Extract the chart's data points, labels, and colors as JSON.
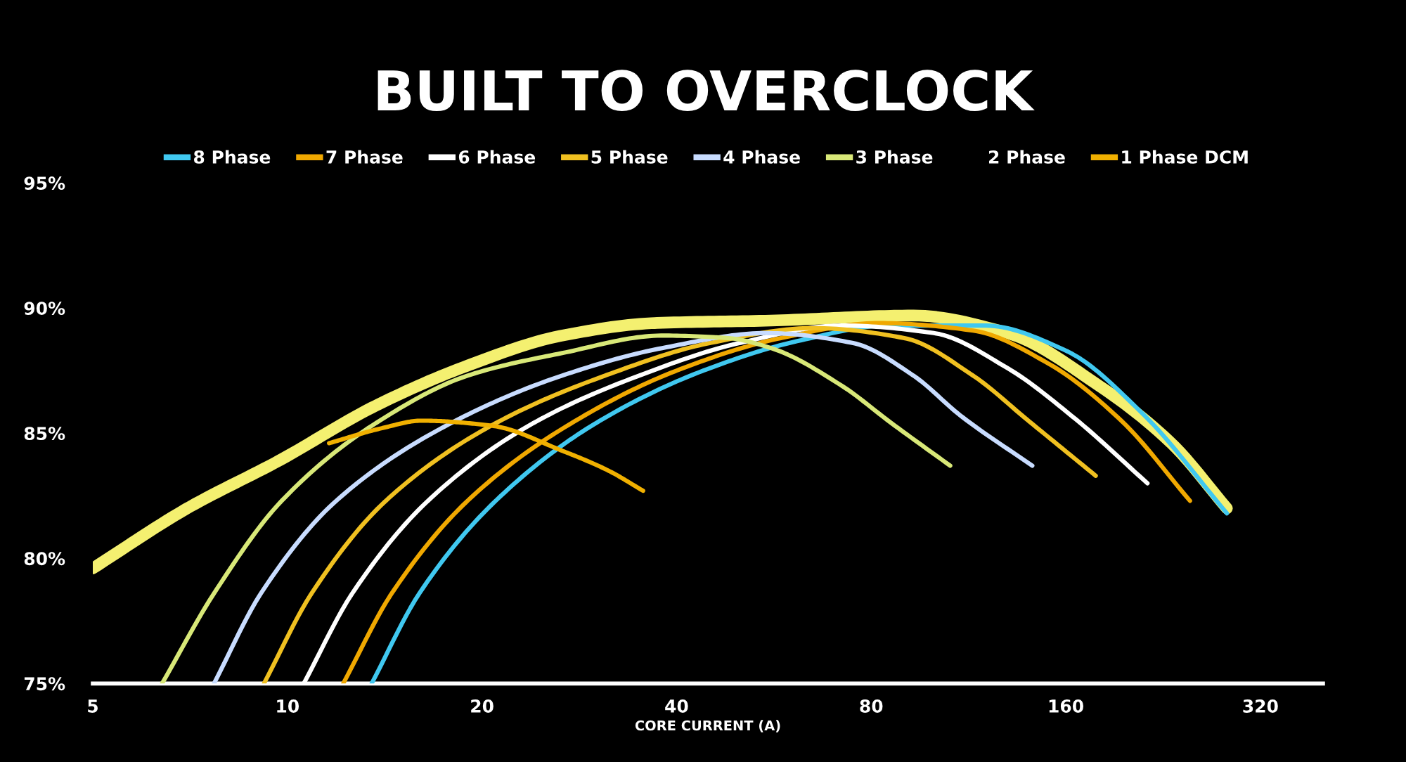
{
  "chart_data": {
    "type": "line",
    "title": "BUILT TO OVERCLOCK",
    "xlabel": "CORE CURRENT (A)",
    "log": "x",
    "xlim": [
      5,
      400
    ],
    "xticks": [
      5,
      10,
      20,
      40,
      80,
      160,
      320
    ],
    "ylim": [
      75,
      95
    ],
    "yticks": [
      {
        "value": 75,
        "label": "75%"
      },
      {
        "value": 80,
        "label": "80%"
      },
      {
        "value": 85,
        "label": "85%"
      },
      {
        "value": 90,
        "label": "90%"
      },
      {
        "value": 95,
        "label": "95%"
      }
    ],
    "grid": false,
    "legend": "top",
    "marker": "none",
    "line_style": "solid",
    "series": [
      {
        "name": "8 Phase",
        "color": "#40c8f0",
        "x": [
          13.5,
          16,
          21,
          30,
          44,
          62,
          85,
          120,
          160,
          210,
          284
        ],
        "values": [
          75,
          78.6,
          82.3,
          85.4,
          87.5,
          88.7,
          89.3,
          89.3,
          88.3,
          85.8,
          81.8
        ]
      },
      {
        "name": "7 Phase",
        "color": "#f0a800",
        "x": [
          12.2,
          14.5,
          19,
          27.5,
          40,
          58,
          82,
          115,
          150,
          195,
          249
        ],
        "values": [
          75,
          78.6,
          82.3,
          85.4,
          87.5,
          88.8,
          89.4,
          89.1,
          87.8,
          85.5,
          82.3
        ]
      },
      {
        "name": "6 Phase",
        "color": "#ffffff",
        "x": [
          10.6,
          12.6,
          16.5,
          24,
          35,
          50,
          72,
          100,
          130,
          165,
          214
        ],
        "values": [
          75,
          78.6,
          82.3,
          85.4,
          87.3,
          88.6,
          89.3,
          89,
          87.6,
          85.6,
          83
        ]
      },
      {
        "name": "5 Phase",
        "color": "#f0c020",
        "x": [
          9.2,
          10.9,
          14.2,
          21,
          31,
          45,
          65,
          90,
          115,
          140,
          178
        ],
        "values": [
          75,
          78.6,
          82.3,
          85.4,
          87.3,
          88.6,
          89.2,
          88.8,
          87.3,
          85.5,
          83.3
        ]
      },
      {
        "name": "4 Phase",
        "color": "#c8dcff",
        "x": [
          7.7,
          9.1,
          11.9,
          17.9,
          26.6,
          38,
          55,
          75,
          93,
          110,
          142
        ],
        "values": [
          75,
          78.6,
          82.3,
          85.4,
          87.3,
          88.4,
          89,
          88.6,
          87.3,
          85.7,
          83.7
        ]
      },
      {
        "name": "3 Phase",
        "color": "#d8e878",
        "x": [
          6.4,
          7.7,
          9.8,
          13.7,
          19,
          26.6,
          38,
          48,
          56,
          72,
          86,
          106
        ],
        "values": [
          75,
          78.6,
          82.3,
          85.4,
          87.3,
          88.2,
          88.9,
          88.8,
          88.4,
          86.9,
          85.4,
          83.7
        ]
      },
      {
        "name": "2 Phase"
      },
      {
        "name": "1 Phase DCM",
        "color": "#f0b000",
        "x": [
          11.6,
          14,
          16.1,
          20.7,
          26.6,
          31.4,
          35.5
        ],
        "values": [
          84.6,
          85.2,
          85.5,
          85.3,
          84.3,
          83.5,
          82.7
        ]
      },
      {
        "color": "#f4f070",
        "x": [
          5,
          7,
          9.7,
          13.7,
          19,
          26.6,
          37,
          56,
          93,
          130,
          180,
          233,
          284
        ],
        "values": [
          79.6,
          82,
          83.9,
          86.1,
          87.7,
          88.9,
          89.4,
          89.5,
          89.7,
          89,
          86.9,
          84.6,
          82
        ]
      }
    ]
  }
}
